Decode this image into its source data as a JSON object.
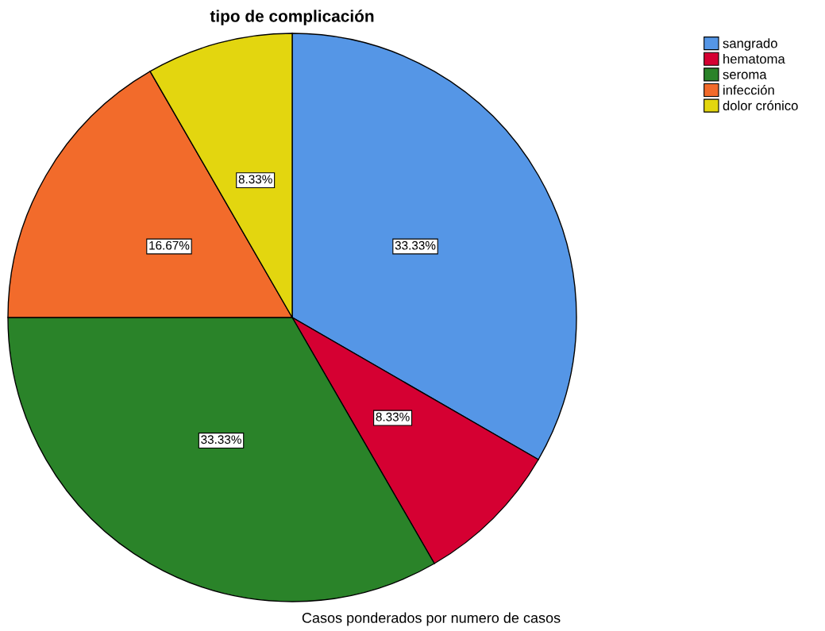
{
  "chart_data": {
    "type": "pie",
    "title": "tipo de complicación",
    "categories": [
      "sangrado",
      "hematoma",
      "seroma",
      "infección",
      "dolor crónico"
    ],
    "values": [
      33.33,
      8.33,
      33.33,
      16.67,
      8.33
    ],
    "colors": [
      "#5596e6",
      "#d50032",
      "#2a8329",
      "#f26b2b",
      "#e3d60f"
    ],
    "value_labels": [
      "33.33%",
      "8.33%",
      "33.33%",
      "16.67%",
      "8.33%"
    ],
    "legend": "top right",
    "annotations": [
      "Casos ponderados por numero de casos"
    ]
  }
}
